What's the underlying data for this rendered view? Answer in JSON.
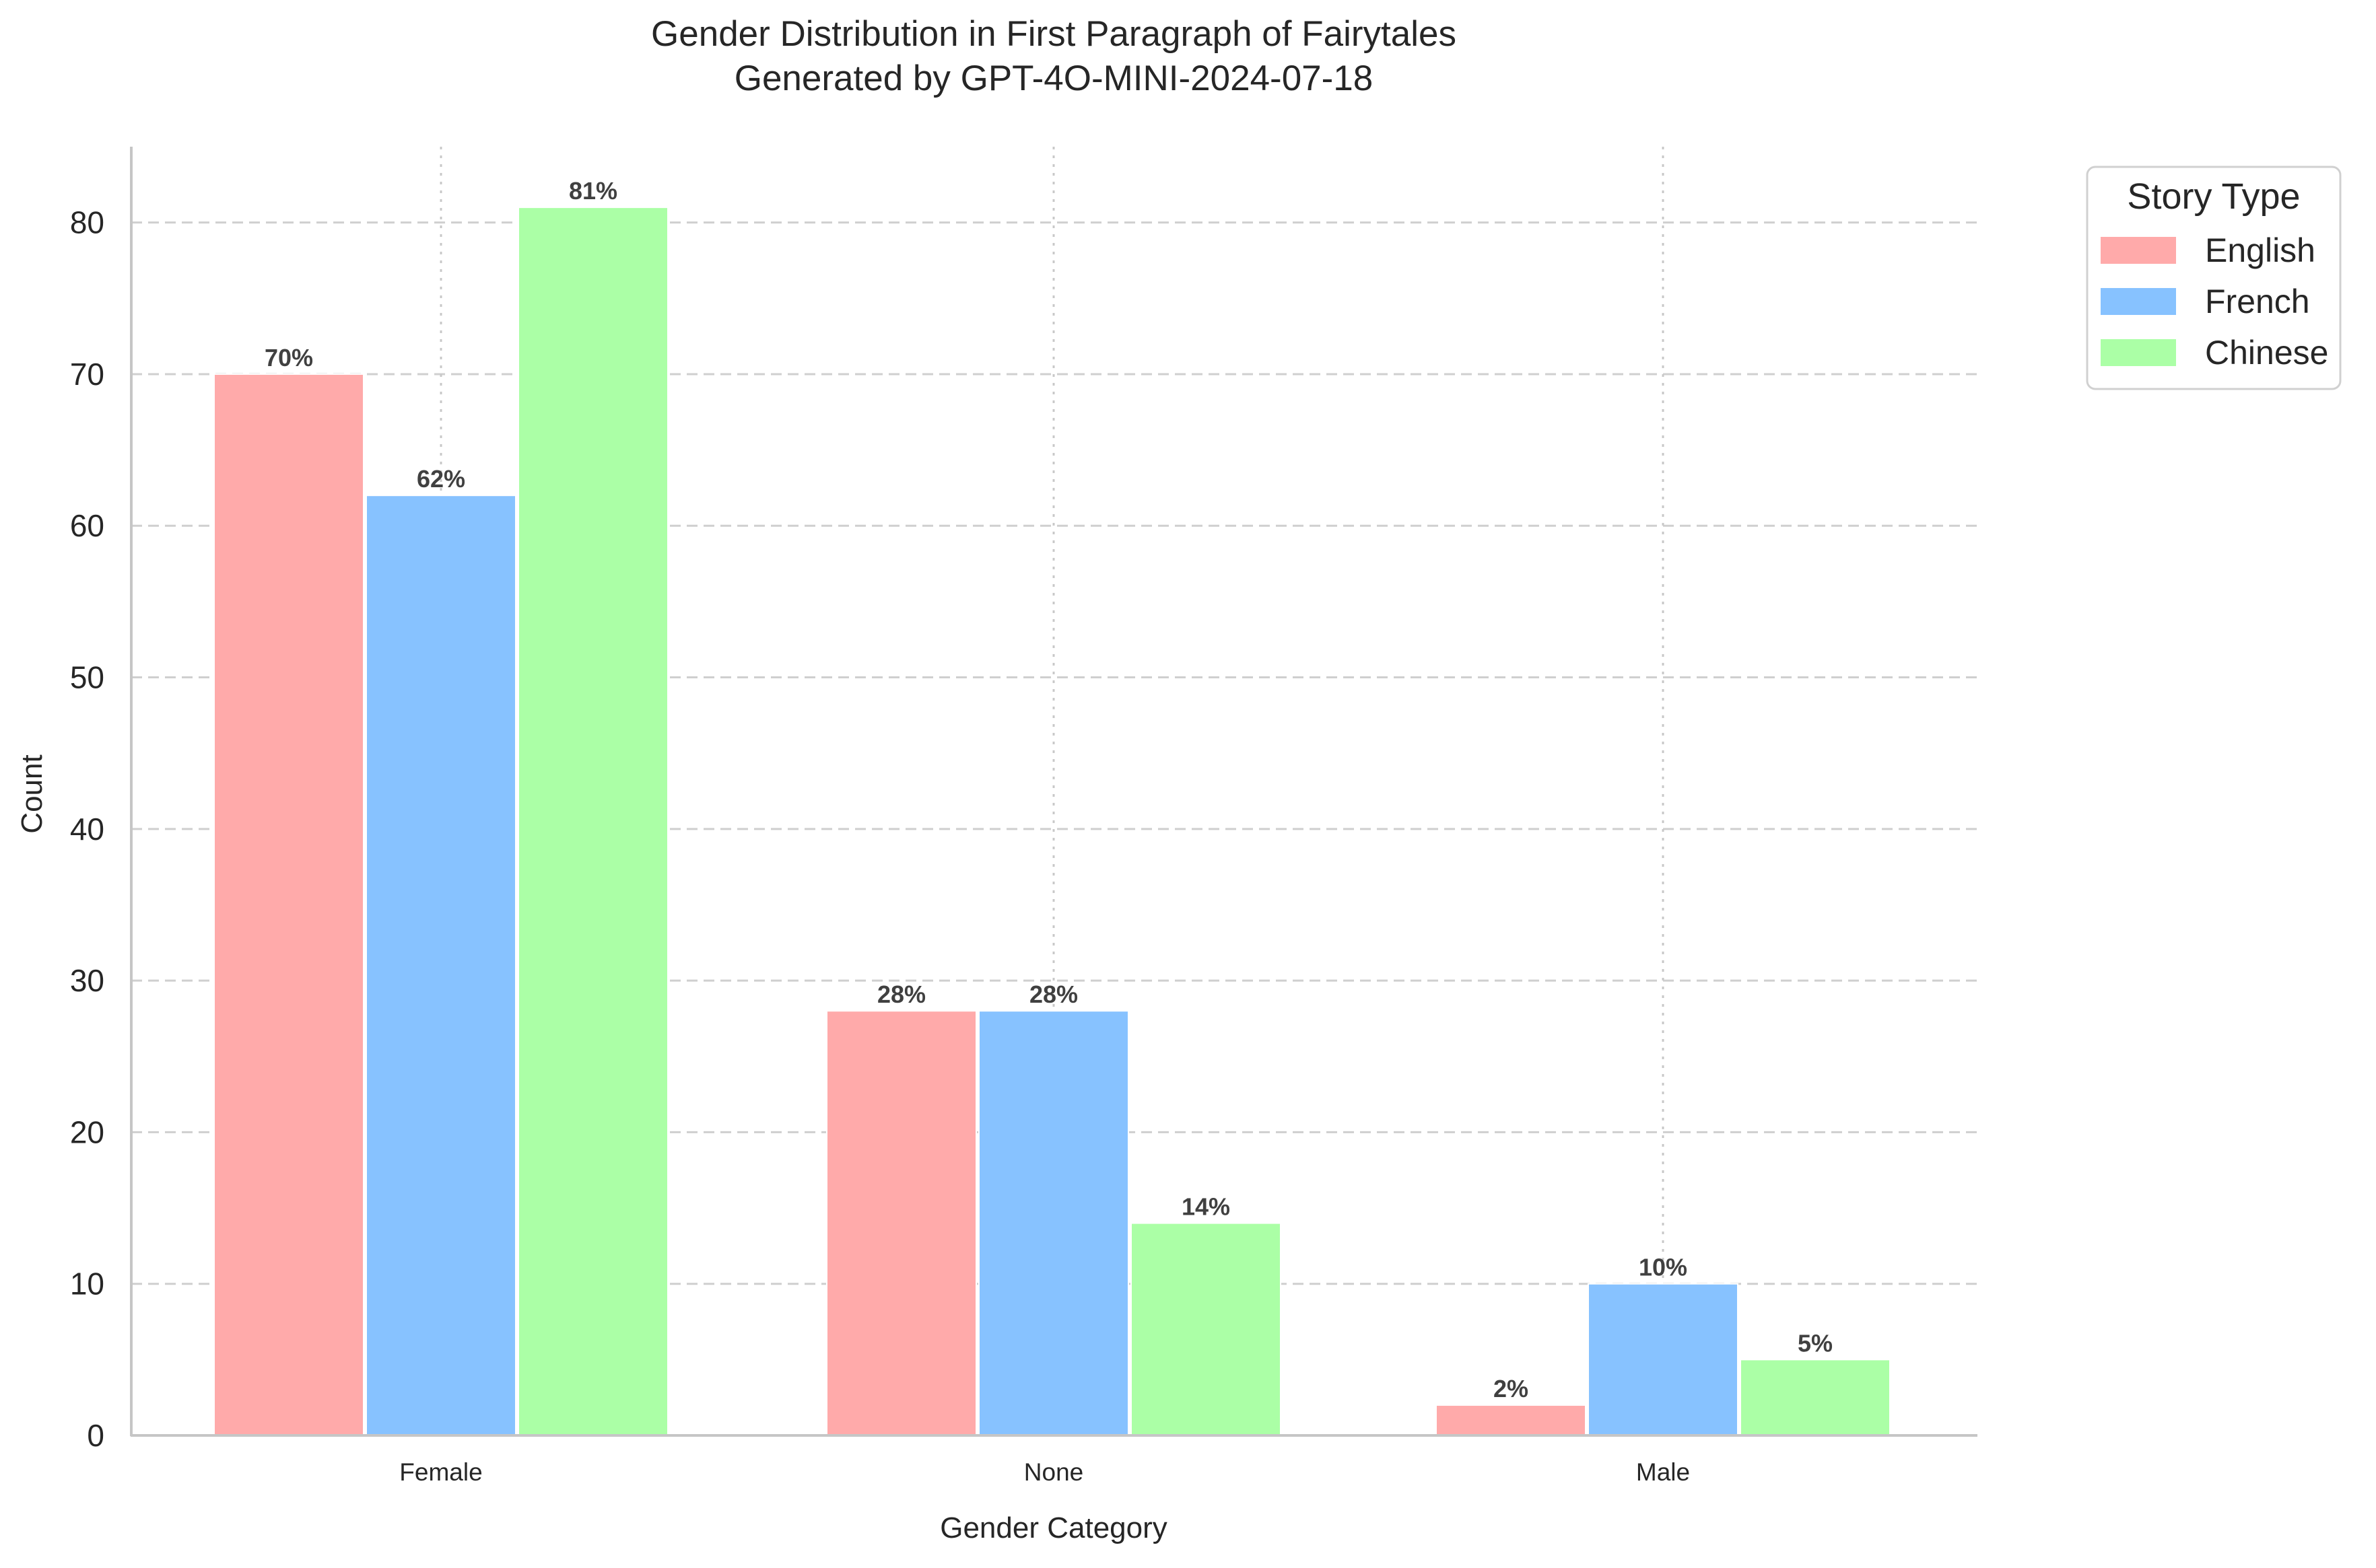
{
  "chart_data": {
    "type": "bar",
    "title_lines": [
      "Gender Distribution in First Paragraph of Fairytales",
      "Generated by GPT-4O-MINI-2024-07-18"
    ],
    "xlabel": "Gender Category",
    "ylabel": "Count",
    "categories": [
      "Female",
      "None",
      "Male"
    ],
    "series": [
      {
        "name": "English",
        "values": [
          70,
          28,
          2
        ],
        "labels": [
          "70%",
          "28%",
          "2%"
        ],
        "color": "#ffaaaa"
      },
      {
        "name": "French",
        "values": [
          62,
          28,
          10
        ],
        "labels": [
          "62%",
          "28%",
          "10%"
        ],
        "color": "#87c2ff"
      },
      {
        "name": "Chinese",
        "values": [
          81,
          14,
          5
        ],
        "labels": [
          "81%",
          "14%",
          "5%"
        ],
        "color": "#abffa6"
      }
    ],
    "ylim": [
      0,
      85
    ],
    "yticks": [
      0,
      10,
      20,
      30,
      40,
      50,
      60,
      70,
      80
    ],
    "grid": true,
    "legend": {
      "title": "Story Type",
      "placement": "outside-top-right"
    }
  }
}
